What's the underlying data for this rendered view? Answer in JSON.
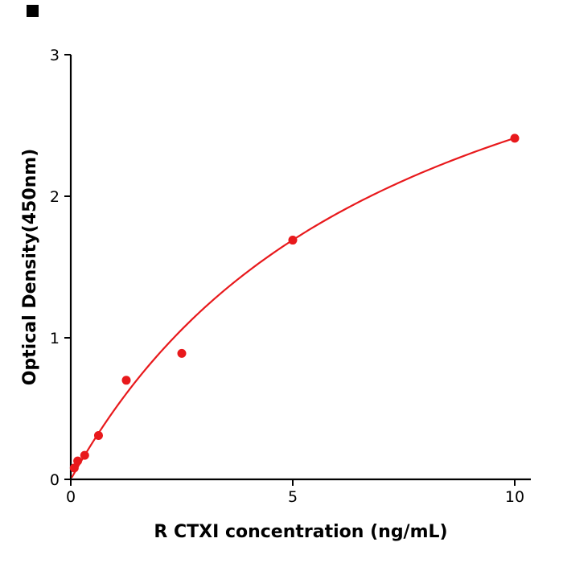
{
  "page": {
    "background": "#ffffff"
  },
  "corner_marker": {
    "color": "#000000"
  },
  "chart_data": {
    "type": "scatter",
    "title": "",
    "xlabel": "R  CTXI concentration (ng/mL)",
    "ylabel": "Optical Density(450nm)",
    "points": {
      "x": [
        0.078,
        0.156,
        0.313,
        0.625,
        1.25,
        2.5,
        5,
        10
      ],
      "y": [
        0.08,
        0.13,
        0.17,
        0.31,
        0.7,
        0.89,
        1.69,
        2.41
      ]
    },
    "xlim": [
      0,
      10.36
    ],
    "ylim": [
      0,
      3
    ],
    "xticks": [
      "0",
      "5",
      "10"
    ],
    "yticks": [
      "0",
      "1",
      "2",
      "3"
    ],
    "grid": false,
    "legend": "none",
    "point_color": "#e8191c",
    "point_radius": 5.5,
    "curve_color": "#e8191c",
    "curve_width": 2.2,
    "curve_fit": {
      "model": "y = a*x/(b+x)",
      "a": 4.2,
      "b": 7.42,
      "x_start": 0.03,
      "x_end": 10
    }
  }
}
